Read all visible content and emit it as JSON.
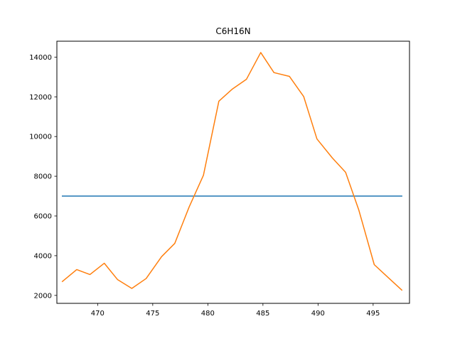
{
  "chart_data": {
    "type": "line",
    "title": "C6H16N",
    "xlabel": "",
    "ylabel": "",
    "xlim": [
      466.3,
      498.3
    ],
    "ylim": [
      1600,
      14800
    ],
    "x_ticks": [
      470,
      475,
      480,
      485,
      490,
      495
    ],
    "y_ticks": [
      2000,
      4000,
      6000,
      8000,
      10000,
      12000,
      14000
    ],
    "grid": false,
    "legend": "none",
    "series": [
      {
        "color": "#1f77b4",
        "x": [
          466.8,
          497.6
        ],
        "y": [
          7000,
          7000
        ]
      },
      {
        "color": "#ff7f0e",
        "x": [
          466.8,
          468.1,
          469.3,
          470.6,
          471.8,
          473.1,
          474.4,
          475.8,
          477.0,
          478.3,
          479.6,
          481.0,
          482.2,
          483.5,
          484.8,
          486.0,
          487.4,
          488.7,
          489.9,
          491.3,
          492.5,
          493.7,
          495.1,
          496.4,
          497.6
        ],
        "y": [
          2700,
          3300,
          3050,
          3620,
          2800,
          2350,
          2850,
          3950,
          4620,
          6450,
          8050,
          11780,
          12380,
          12880,
          14230,
          13220,
          13030,
          12010,
          9880,
          8920,
          8200,
          6300,
          3550,
          2880,
          2270
        ]
      }
    ]
  }
}
